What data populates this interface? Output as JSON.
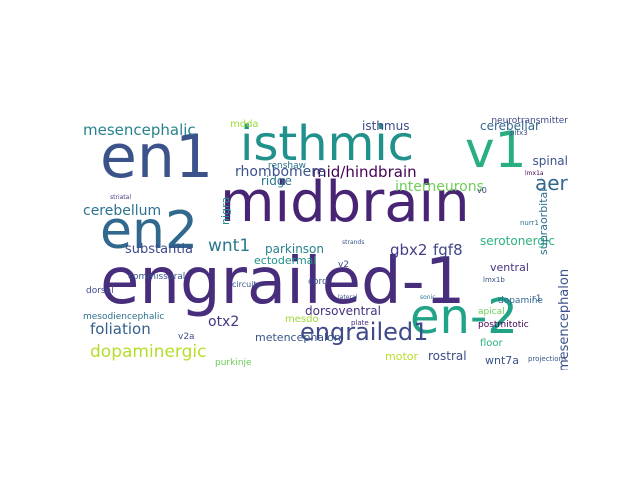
{
  "words": [
    {
      "text": "engrailed-1",
      "color": "#472d7b"
    },
    {
      "text": "midbrain",
      "color": "#482475"
    },
    {
      "text": "en1",
      "color": "#3b528b"
    },
    {
      "text": "isthmic",
      "color": "#21918c"
    },
    {
      "text": "v1",
      "color": "#29af7f"
    },
    {
      "text": "en2",
      "color": "#31688e"
    },
    {
      "text": "en-2",
      "color": "#20a386"
    },
    {
      "text": "engrailed1",
      "color": "#3e4a89"
    },
    {
      "text": "mesencephalic",
      "color": "#26828e"
    },
    {
      "text": "mid/hindbrain",
      "color": "#440154"
    },
    {
      "text": "aer",
      "color": "#31688e"
    },
    {
      "text": "dopaminergic",
      "color": "#b5de2b"
    },
    {
      "text": "foliation",
      "color": "#35608d"
    },
    {
      "text": "cerebellum",
      "color": "#2c728e"
    },
    {
      "text": "wnt1",
      "color": "#2a788e"
    },
    {
      "text": "interneurons",
      "color": "#6ece58"
    },
    {
      "text": "rhombomere",
      "color": "#3b528b"
    },
    {
      "text": "gbx2",
      "color": "#433e85"
    },
    {
      "text": "fgf8",
      "color": "#404688"
    },
    {
      "text": "otx2",
      "color": "#453781"
    },
    {
      "text": "substantia",
      "color": "#3e4a89"
    },
    {
      "text": "parkinson",
      "color": "#26828e"
    },
    {
      "text": "ectodermal",
      "color": "#21918c"
    },
    {
      "text": "serotonergic",
      "color": "#2db27d"
    },
    {
      "text": "metencephalon",
      "color": "#39568c"
    },
    {
      "text": "mesencephalon",
      "color": "#3b528b"
    },
    {
      "text": "dorsoventral",
      "color": "#46327e"
    },
    {
      "text": "cerebellar",
      "color": "#31688e"
    },
    {
      "text": "isthmus",
      "color": "#3e4a89"
    },
    {
      "text": "spinal",
      "color": "#3b528b"
    },
    {
      "text": "supraorbital",
      "color": "#2d708e"
    },
    {
      "text": "ridge",
      "color": "#2a788e"
    },
    {
      "text": "nigra",
      "color": "#218f8d"
    },
    {
      "text": "rostral",
      "color": "#3e4a89"
    },
    {
      "text": "ventral",
      "color": "#46337f"
    },
    {
      "text": "mdda",
      "color": "#a0da39"
    },
    {
      "text": "wnt7a",
      "color": "#3b528b"
    },
    {
      "text": "motor",
      "color": "#b5de2b"
    },
    {
      "text": "mesodiencephalic",
      "color": "#2c728e"
    },
    {
      "text": "commissural",
      "color": "#39568c"
    },
    {
      "text": "mesdo",
      "color": "#a0da39"
    },
    {
      "text": "floor",
      "color": "#2db27d"
    },
    {
      "text": "purkinje",
      "color": "#6ece58"
    },
    {
      "text": "dorsal",
      "color": "#3e4a89"
    },
    {
      "text": "v2a",
      "color": "#3b528b"
    },
    {
      "text": "cord",
      "color": "#3b528b"
    },
    {
      "text": "renshaw",
      "color": "#2c728e"
    },
    {
      "text": "v2",
      "color": "#3b528b"
    },
    {
      "text": "r1",
      "color": "#38598c"
    },
    {
      "text": "dopamine",
      "color": "#31688e"
    },
    {
      "text": "apical",
      "color": "#6ece58"
    },
    {
      "text": "postmitotic",
      "color": "#440154"
    },
    {
      "text": "neurotransmitter",
      "color": "#3e4a89"
    },
    {
      "text": "projections",
      "color": "#3b528b"
    },
    {
      "text": "v0",
      "color": "#3e4a89"
    },
    {
      "text": "circuits",
      "color": "#39568c"
    },
    {
      "text": "plate",
      "color": "#472d7b"
    },
    {
      "text": "lmx1b",
      "color": "#3b528b"
    },
    {
      "text": "lmx1a",
      "color": "#440154"
    },
    {
      "text": "nurr1",
      "color": "#2c728e"
    },
    {
      "text": "pitx3",
      "color": "#3e4a89"
    },
    {
      "text": "striatal",
      "color": "#433e85"
    },
    {
      "text": "strands",
      "color": "#39568c"
    },
    {
      "text": "sonic",
      "color": "#2c728e"
    },
    {
      "text": "lateral",
      "color": "#3b528b"
    }
  ]
}
